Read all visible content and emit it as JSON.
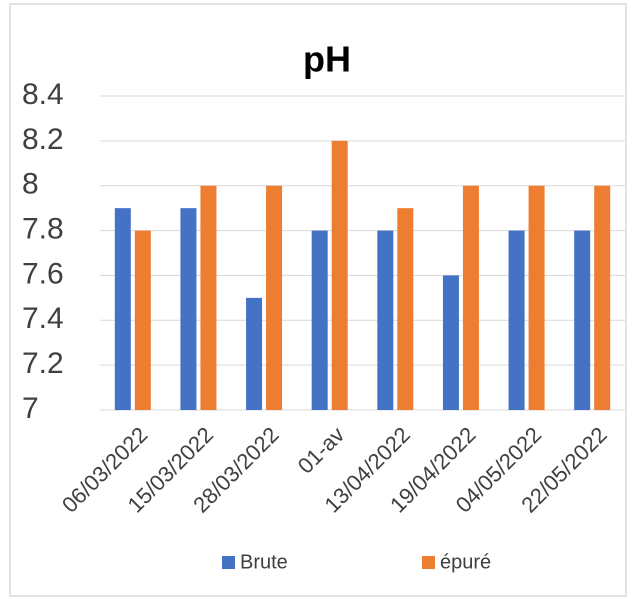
{
  "chart_data": {
    "type": "bar",
    "title": "pH",
    "categories": [
      "06/03/2022",
      "15/03/2022",
      "28/03/2022",
      "01-av",
      "13/04/2022",
      "19/04/2022",
      "04/05/2022",
      "22/05/2022"
    ],
    "series": [
      {
        "name": "Brute",
        "color": "#4472c4",
        "values": [
          7.9,
          7.9,
          7.5,
          7.8,
          7.8,
          7.6,
          7.8,
          7.8
        ]
      },
      {
        "name": "épuré",
        "color": "#ed7d31",
        "values": [
          7.8,
          8,
          8,
          8.2,
          7.9,
          8,
          8,
          8
        ]
      }
    ],
    "ylim": [
      7,
      8.4
    ],
    "yticks": [
      7,
      7.2,
      7.4,
      7.6,
      7.8,
      8,
      8.2,
      8.4
    ],
    "grid": true,
    "legend": "bottom"
  }
}
